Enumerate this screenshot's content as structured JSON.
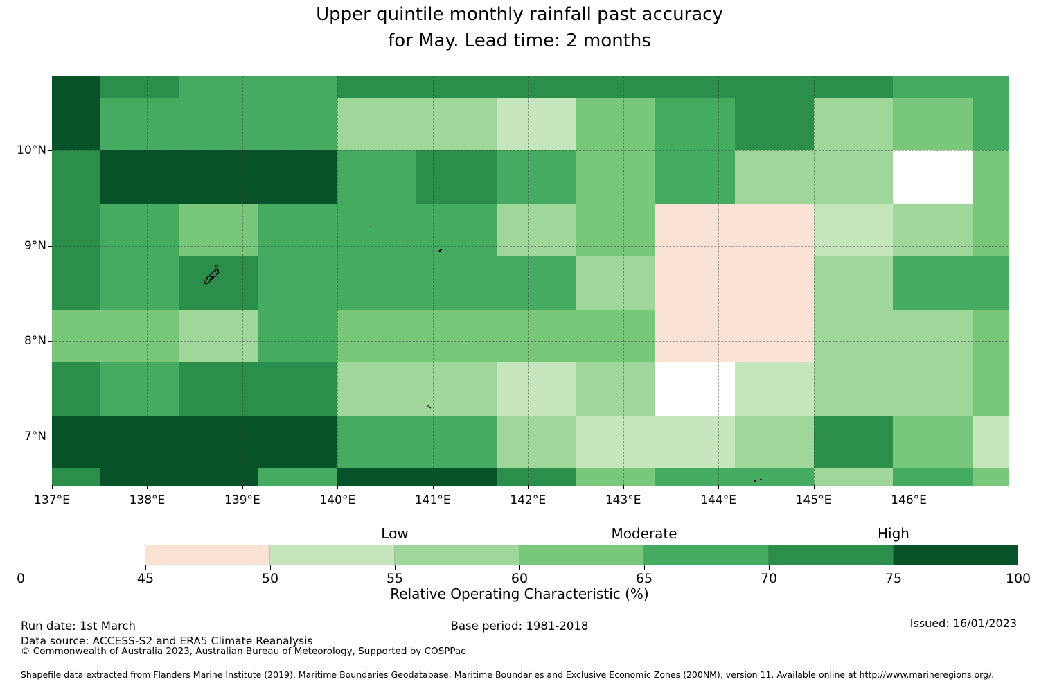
{
  "title": {
    "line1": "Upper quintile monthly rainfall past accuracy",
    "line2": "for May. Lead time: 2 months"
  },
  "chart_data": {
    "type": "heatmap",
    "title": "Upper quintile monthly rainfall past accuracy for May. Lead time: 2 months",
    "x_axis": {
      "ticks": [
        137,
        138,
        139,
        140,
        141,
        142,
        143,
        144,
        145,
        146
      ],
      "suffix": "°E"
    },
    "y_axis": {
      "ticks": [
        7,
        8,
        9,
        10
      ],
      "suffix": "°N"
    },
    "lon_edges": [
      137.0,
      137.5,
      138.33,
      139.17,
      140.0,
      140.83,
      141.67,
      142.5,
      143.33,
      144.17,
      145.0,
      145.83,
      146.67,
      147.04
    ],
    "lat_edges": [
      10.78,
      10.55,
      10.0,
      9.44,
      8.89,
      8.33,
      7.78,
      7.22,
      6.67,
      6.49
    ],
    "bins": {
      "W": {
        "range": "0-45",
        "value": 40.0,
        "color": "#ffffff"
      },
      "P": {
        "range": "45-50",
        "value": 47.5,
        "color": "#fae3d5"
      },
      "F": {
        "range": "50-55",
        "value": 52.5,
        "color": "#c5e6bc"
      },
      "E": {
        "range": "55-60",
        "value": 57.5,
        "color": "#9fd69a"
      },
      "D": {
        "range": "60-65",
        "value": 62.5,
        "color": "#79c77a"
      },
      "C": {
        "range": "65-70",
        "value": 67.5,
        "color": "#44ab60"
      },
      "B": {
        "range": "70-75",
        "value": 72.5,
        "color": "#2b8e4b"
      },
      "A": {
        "range": "75-100",
        "value": 87.5,
        "color": "#075229"
      }
    },
    "grid_bins": [
      [
        "A",
        "B",
        "C",
        "C",
        "B",
        "B",
        "B",
        "B",
        "B",
        "B",
        "B",
        "C",
        "C"
      ],
      [
        "A",
        "C",
        "C",
        "C",
        "E",
        "E",
        "F",
        "D",
        "C",
        "B",
        "E",
        "D",
        "C"
      ],
      [
        "B",
        "A",
        "A",
        "A",
        "C",
        "B",
        "C",
        "D",
        "C",
        "E",
        "E",
        "W",
        "D"
      ],
      [
        "B",
        "C",
        "D",
        "C",
        "C",
        "C",
        "E",
        "D",
        "P",
        "P",
        "F",
        "E",
        "D"
      ],
      [
        "B",
        "C",
        "B",
        "C",
        "C",
        "C",
        "C",
        "E",
        "P",
        "P",
        "E",
        "C",
        "C"
      ],
      [
        "D",
        "D",
        "E",
        "C",
        "D",
        "D",
        "D",
        "D",
        "P",
        "P",
        "E",
        "E",
        "D"
      ],
      [
        "B",
        "C",
        "B",
        "B",
        "E",
        "E",
        "F",
        "E",
        "W",
        "F",
        "E",
        "E",
        "D"
      ],
      [
        "A",
        "A",
        "A",
        "A",
        "C",
        "C",
        "E",
        "F",
        "F",
        "E",
        "B",
        "D",
        "F"
      ],
      [
        "B",
        "A",
        "A",
        "C",
        "A",
        "A",
        "B",
        "D",
        "C",
        "C",
        "E",
        "C",
        "D"
      ]
    ],
    "colorbar": {
      "segment_order": [
        "W",
        "P",
        "F",
        "E",
        "D",
        "C",
        "B",
        "A"
      ],
      "tick_labels": [
        "0",
        "45",
        "50",
        "55",
        "60",
        "65",
        "70",
        "75",
        "100"
      ],
      "categories": [
        {
          "label": "Low",
          "at_tick": 3
        },
        {
          "label": "Moderate",
          "at_tick": 5
        },
        {
          "label": "High",
          "at_tick": 7
        }
      ],
      "axis_label": "Relative Operating Characteristic (%)"
    }
  },
  "footer": {
    "run_date": "Run date: 1st March",
    "base_period": "Base period: 1981-2018",
    "issued": "Issued: 16/01/2023",
    "data_source": "Data source: ACCESS-S2 and ERA5 Climate Reanalysis",
    "copyright": "© Commonwealth of Australia 2023, Australian Bureau of Meteorology, Supported by COSPPac",
    "shapefile_note": "Shapefile data extracted from Flanders Marine Institute (2019), Maritime Boundaries Geodatabase: Maritime Boundaries and Exclusive Economic Zones (200NM), version 11. Available online at http://www.marineregions.org/."
  }
}
